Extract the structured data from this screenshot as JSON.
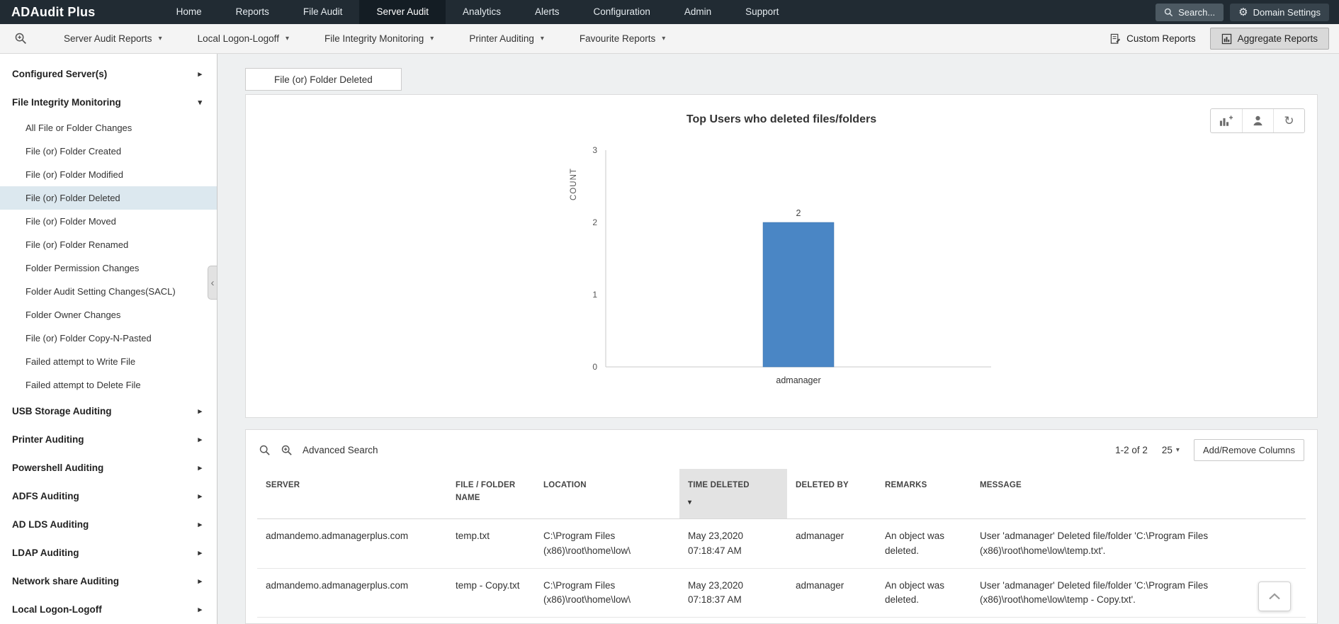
{
  "app": {
    "logo": "ADAudit Plus"
  },
  "topnav": {
    "items": [
      "Home",
      "Reports",
      "File Audit",
      "Server Audit",
      "Analytics",
      "Alerts",
      "Configuration",
      "Admin",
      "Support"
    ],
    "active_item": "Server Audit",
    "search_label": "Search...",
    "domain_settings_label": "Domain Settings"
  },
  "toolbar": {
    "dropdowns": [
      "Server Audit Reports",
      "Local Logon-Logoff",
      "File Integrity Monitoring",
      "Printer Auditing",
      "Favourite Reports"
    ],
    "custom_reports_label": "Custom Reports",
    "aggregate_reports_label": "Aggregate Reports"
  },
  "sidebar": {
    "items": [
      {
        "label": "Configured Server(s)",
        "type": "section",
        "state": "collapsed"
      },
      {
        "label": "File Integrity Monitoring",
        "type": "section",
        "state": "expanded"
      },
      {
        "label": "All File or Folder Changes",
        "type": "child"
      },
      {
        "label": "File (or) Folder Created",
        "type": "child"
      },
      {
        "label": "File (or) Folder Modified",
        "type": "child"
      },
      {
        "label": "File (or) Folder Deleted",
        "type": "child",
        "selected": true
      },
      {
        "label": "File (or) Folder Moved",
        "type": "child"
      },
      {
        "label": "File (or) Folder Renamed",
        "type": "child"
      },
      {
        "label": "Folder Permission Changes",
        "type": "child"
      },
      {
        "label": "Folder Audit Setting Changes(SACL)",
        "type": "child"
      },
      {
        "label": "Folder Owner Changes",
        "type": "child"
      },
      {
        "label": "File (or) Folder Copy-N-Pasted",
        "type": "child"
      },
      {
        "label": "Failed attempt to Write File",
        "type": "child"
      },
      {
        "label": "Failed attempt to Delete File",
        "type": "child"
      },
      {
        "label": "USB Storage Auditing",
        "type": "section",
        "state": "collapsed"
      },
      {
        "label": "Printer Auditing",
        "type": "section",
        "state": "collapsed"
      },
      {
        "label": "Powershell Auditing",
        "type": "section",
        "state": "collapsed"
      },
      {
        "label": "ADFS Auditing",
        "type": "section",
        "state": "collapsed"
      },
      {
        "label": "AD LDS Auditing",
        "type": "section",
        "state": "collapsed"
      },
      {
        "label": "LDAP Auditing",
        "type": "section",
        "state": "collapsed"
      },
      {
        "label": "Network share Auditing",
        "type": "section",
        "state": "collapsed"
      },
      {
        "label": "Local Logon-Logoff",
        "type": "section",
        "state": "collapsed"
      }
    ]
  },
  "main": {
    "tab": "File (or) Folder Deleted"
  },
  "chart_data": {
    "type": "bar",
    "title": "Top Users who deleted files/folders",
    "xlabel": "",
    "ylabel": "COUNT",
    "categories": [
      "admanager"
    ],
    "values": [
      2
    ],
    "ylim": [
      0,
      3
    ],
    "yticks": [
      0,
      1,
      2,
      3
    ],
    "bar_color": "#4a86c5",
    "grid": false,
    "legend": false
  },
  "table": {
    "advanced_search_label": "Advanced Search",
    "pagination": {
      "range": "1-2 of 2",
      "page_size": "25"
    },
    "add_remove_columns_label": "Add/Remove Columns",
    "columns": [
      "SERVER",
      "FILE / FOLDER NAME",
      "LOCATION",
      "TIME DELETED",
      "DELETED BY",
      "REMARKS",
      "MESSAGE"
    ],
    "sorted_column": "TIME DELETED",
    "sort_direction": "desc",
    "rows": [
      {
        "server": "admandemo.admanagerplus.com",
        "file_folder_name": "temp.txt",
        "location": "C:\\Program Files (x86)\\root\\home\\low\\",
        "time_deleted": "May 23,2020 07:18:47 AM",
        "deleted_by": "admanager",
        "remarks": "An object was deleted.",
        "message": "User 'admanager' Deleted file/folder 'C:\\Program Files (x86)\\root\\home\\low\\temp.txt'."
      },
      {
        "server": "admandemo.admanagerplus.com",
        "file_folder_name": "temp - Copy.txt",
        "location": "C:\\Program Files (x86)\\root\\home\\low\\",
        "time_deleted": "May 23,2020 07:18:37 AM",
        "deleted_by": "admanager",
        "remarks": "An object was deleted.",
        "message": "User 'admanager' Deleted file/folder 'C:\\Program Files (x86)\\root\\home\\low\\temp - Copy.txt'."
      }
    ]
  },
  "icons": {
    "gear": "⚙",
    "caret_down": "▾",
    "caret_right": "▸",
    "sort_desc": "▾",
    "chevron_left": "‹",
    "refresh": "↻"
  },
  "colors": {
    "bar": "#4a86c5",
    "topnav_bg": "#212b33",
    "active_nav_bg": "#141d24",
    "selected_sidebar_bg": "#dce8ef"
  }
}
